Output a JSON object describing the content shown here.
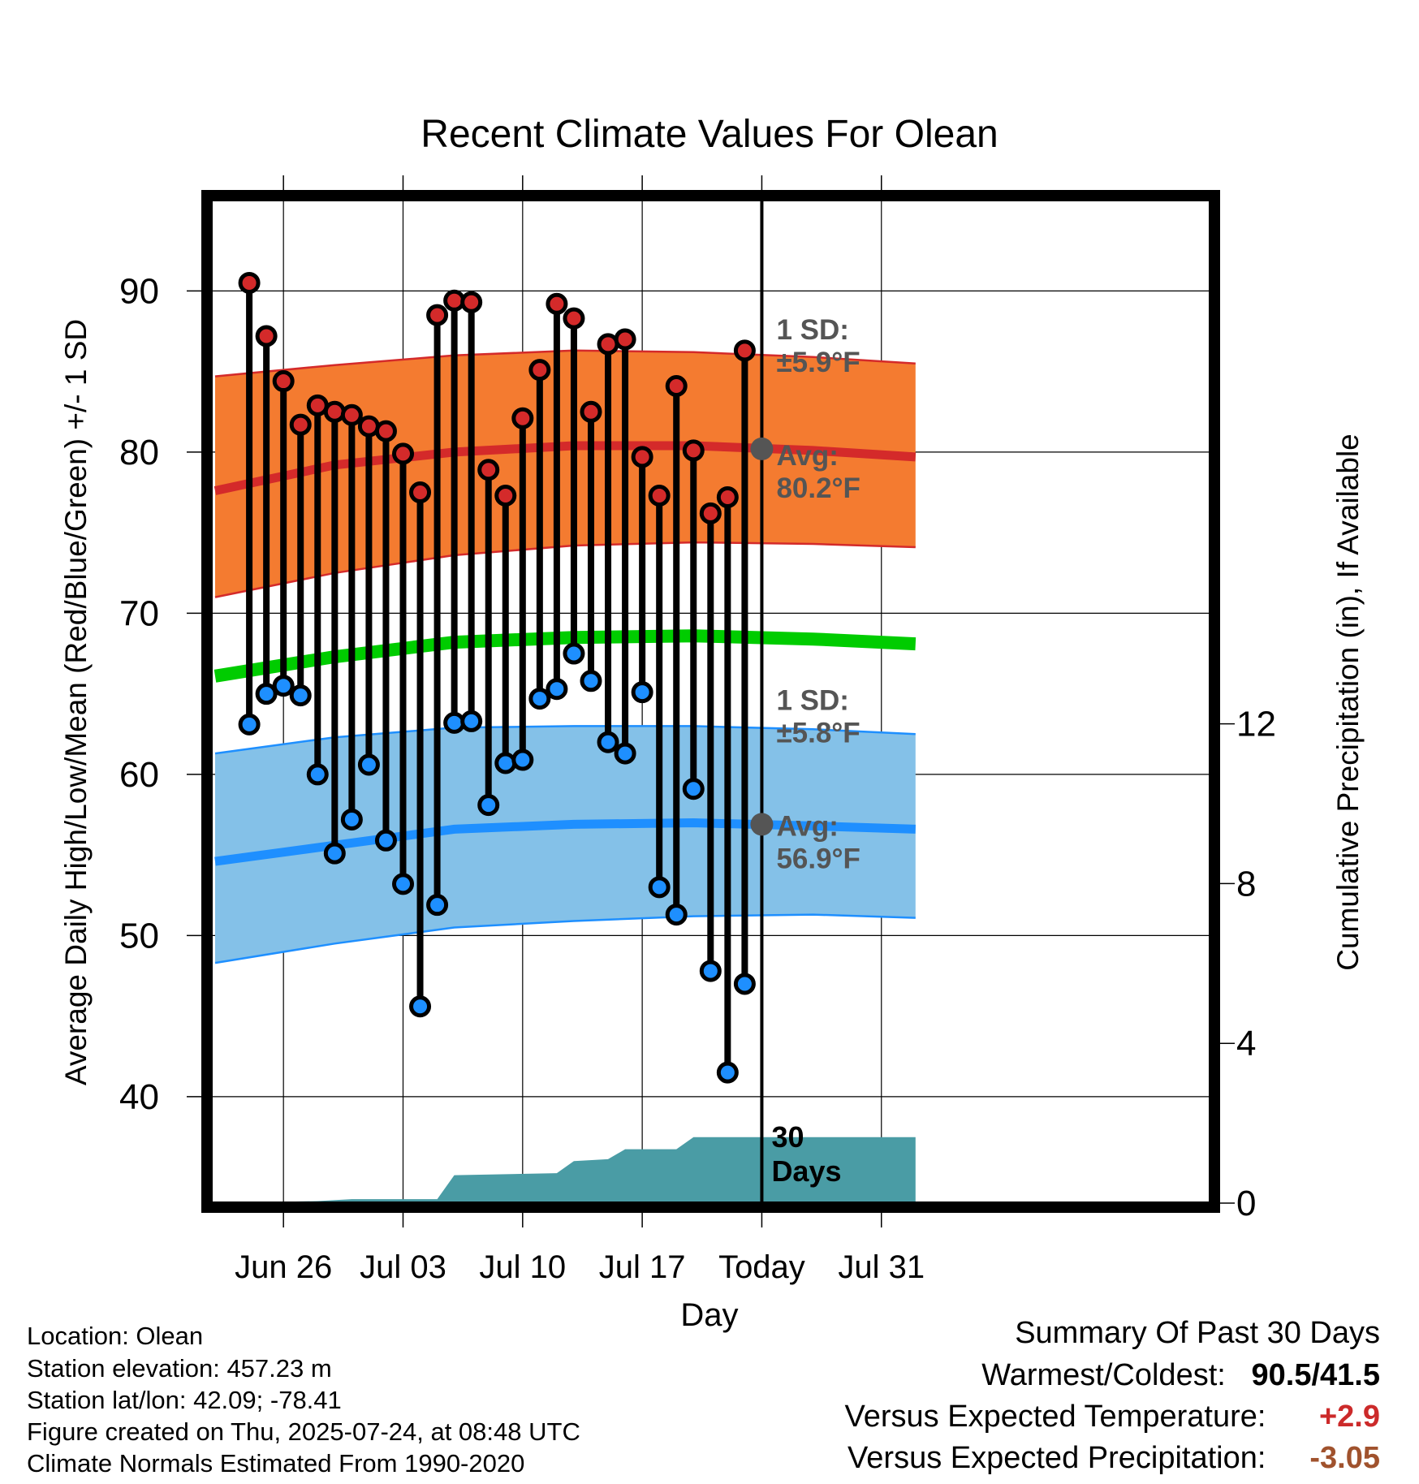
{
  "chart_data": {
    "type": "line",
    "title": "Recent Climate Values For Olean",
    "xlabel": "Day",
    "ylabel": "Average Daily High/Low/Mean (Red/Blue/Green) +/- 1 SD",
    "ylabel_right": "Cumulative Precipitation (in), If Available",
    "x_ticks": [
      "Jun 26",
      "Jul 03",
      "Jul 10",
      "Jul 17",
      "Today",
      "Jul 31"
    ],
    "x_range": [
      "2025-06-22",
      "2025-08-02"
    ],
    "ylim": [
      34,
      96
    ],
    "y_ticks": [
      40,
      50,
      60,
      70,
      80,
      90
    ],
    "y2lim": [
      0,
      24.4
    ],
    "y2_ticks": [
      0,
      4,
      8,
      12
    ],
    "grid": true,
    "today": "2025-07-24",
    "days_label": "30\nDays",
    "dates": [
      "2025-06-24",
      "2025-06-25",
      "2025-06-26",
      "2025-06-27",
      "2025-06-28",
      "2025-06-29",
      "2025-06-30",
      "2025-07-01",
      "2025-07-02",
      "2025-07-03",
      "2025-07-04",
      "2025-07-05",
      "2025-07-06",
      "2025-07-07",
      "2025-07-08",
      "2025-07-09",
      "2025-07-10",
      "2025-07-11",
      "2025-07-12",
      "2025-07-13",
      "2025-07-14",
      "2025-07-15",
      "2025-07-16",
      "2025-07-17",
      "2025-07-18",
      "2025-07-19",
      "2025-07-20",
      "2025-07-21",
      "2025-07-22",
      "2025-07-23"
    ],
    "series": [
      {
        "name": "High",
        "color": "#d42a2a",
        "values": [
          90.5,
          87.2,
          84.4,
          81.7,
          82.9,
          82.5,
          82.3,
          81.6,
          81.3,
          79.9,
          77.5,
          88.5,
          89.4,
          89.3,
          78.9,
          77.3,
          82.1,
          85.1,
          89.2,
          88.3,
          82.5,
          86.7,
          87.0,
          79.7,
          77.3,
          84.1,
          80.1,
          76.2,
          77.2,
          86.3
        ]
      },
      {
        "name": "Low",
        "color": "#1e8fff",
        "values": [
          63.1,
          65.0,
          65.5,
          64.9,
          60.0,
          55.1,
          57.2,
          60.6,
          55.9,
          53.2,
          45.6,
          51.9,
          63.2,
          63.3,
          58.1,
          60.7,
          60.9,
          64.7,
          65.3,
          67.5,
          65.8,
          62.0,
          61.3,
          65.1,
          53.0,
          51.3,
          59.1,
          47.8,
          41.5,
          47.0
        ]
      }
    ],
    "normals": {
      "dates": [
        "2025-06-22",
        "2025-06-29",
        "2025-07-06",
        "2025-07-13",
        "2025-07-20",
        "2025-07-27",
        "2025-08-02"
      ],
      "high_avg": [
        77.6,
        79.2,
        80.0,
        80.4,
        80.4,
        80.1,
        79.7
      ],
      "high_upper": [
        84.7,
        85.4,
        86.0,
        86.3,
        86.2,
        85.9,
        85.5
      ],
      "high_lower": [
        71.0,
        72.5,
        73.6,
        74.2,
        74.4,
        74.3,
        74.1
      ],
      "mean_avg": [
        66.1,
        67.3,
        68.2,
        68.5,
        68.6,
        68.4,
        68.1
      ],
      "low_avg": [
        54.6,
        55.6,
        56.6,
        56.9,
        57.0,
        56.8,
        56.6
      ],
      "low_upper": [
        61.3,
        62.3,
        62.9,
        63.0,
        63.0,
        62.8,
        62.5
      ],
      "low_lower": [
        48.3,
        49.5,
        50.5,
        50.9,
        51.2,
        51.3,
        51.1
      ]
    },
    "precip": {
      "dates": [
        "2025-06-22",
        "2025-06-28",
        "2025-06-30",
        "2025-07-05",
        "2025-07-06",
        "2025-07-12",
        "2025-07-13",
        "2025-07-15",
        "2025-07-16",
        "2025-07-19",
        "2025-07-20",
        "2025-08-02"
      ],
      "values": [
        0.0,
        0.05,
        0.1,
        0.1,
        0.7,
        0.75,
        1.05,
        1.1,
        1.35,
        1.35,
        1.65,
        1.65
      ]
    },
    "annotations": [
      {
        "id": "high_sd",
        "line1": "1 SD:",
        "line2": "±5.9°F"
      },
      {
        "id": "high_avg",
        "line1": "Avg:",
        "line2": "80.2°F",
        "value": 80.2
      },
      {
        "id": "low_sd",
        "line1": "1 SD:",
        "line2": "±5.8°F"
      },
      {
        "id": "low_avg",
        "line1": "Avg:",
        "line2": "56.9°F",
        "value": 56.9
      }
    ],
    "colors": {
      "high_band": "#f47b30",
      "high_line": "#d42a2a",
      "low_band": "#84c1e8",
      "low_line": "#1e8fff",
      "mean_line": "#00cc00",
      "precip": "#4a9ca5",
      "today_marker": "#555555",
      "annotation_text": "#555555"
    }
  },
  "footer": {
    "location": "Location: Olean",
    "elevation": "Station elevation: 457.23 m",
    "latlon": "Station lat/lon: 42.09; -78.41",
    "created": "Figure created on Thu, 2025-07-24, at 08:48 UTC",
    "normals": "Climate Normals Estimated From 1990-2020"
  },
  "summary": {
    "title": "Summary Of Past 30 Days",
    "warmest_coldest_label": "Warmest/Coldest:",
    "warmest_coldest_value": "90.5/41.5",
    "temp_label": "Versus Expected Temperature:",
    "temp_value": "+2.9",
    "temp_color": "#cc2a2a",
    "precip_label": "Versus Expected Precipitation:",
    "precip_value": "-3.05",
    "precip_color": "#a0522d"
  }
}
